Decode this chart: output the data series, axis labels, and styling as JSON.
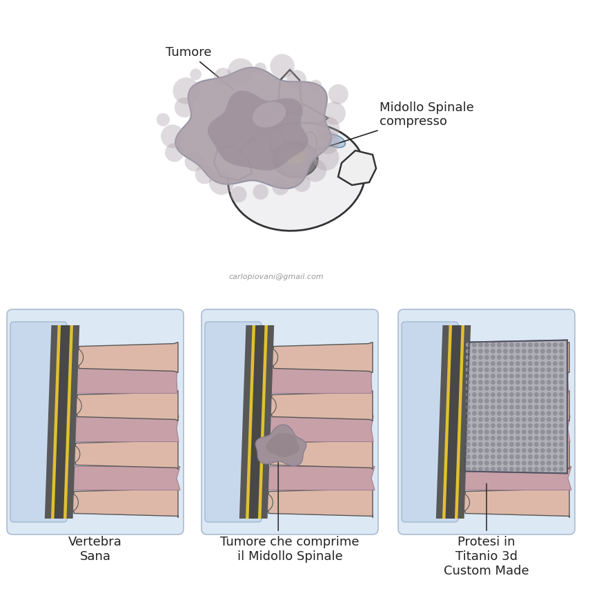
{
  "bg_color": "#ffffff",
  "top_label_tumore": "Tumore",
  "top_label_midollo": "Midollo Spinale\ncompresso",
  "watermark": "carlopiovani@gmail.com",
  "bottom_labels": [
    "Vertebra\nSana",
    "Tumore che comprime\nil Midollo Spinale",
    "Protesi in\nTitanio 3d\nCustom Made"
  ],
  "colors": {
    "vertebra_body": "#ddb8a8",
    "vertebra_outline": "#555555",
    "disc_pink": "#cda0a8",
    "tumor_gray": "#9a8a98",
    "tumor_light": "#b0a0ac",
    "bone_white": "#f2f2f2",
    "bone_light": "#e8e8e8",
    "canal_bg": "#c8d8ec",
    "canal_bg2": "#b8cce0",
    "implant_gray": "#a8a8b0",
    "implant_dot": "#888890",
    "ligament_blue": "#b8cce0",
    "gold_cord": "#e0b830",
    "gold_bright": "#f0d060",
    "dark_canal": "#505050",
    "mid_canal": "#686868",
    "outline_dark": "#333333",
    "outline_mid": "#555555"
  }
}
